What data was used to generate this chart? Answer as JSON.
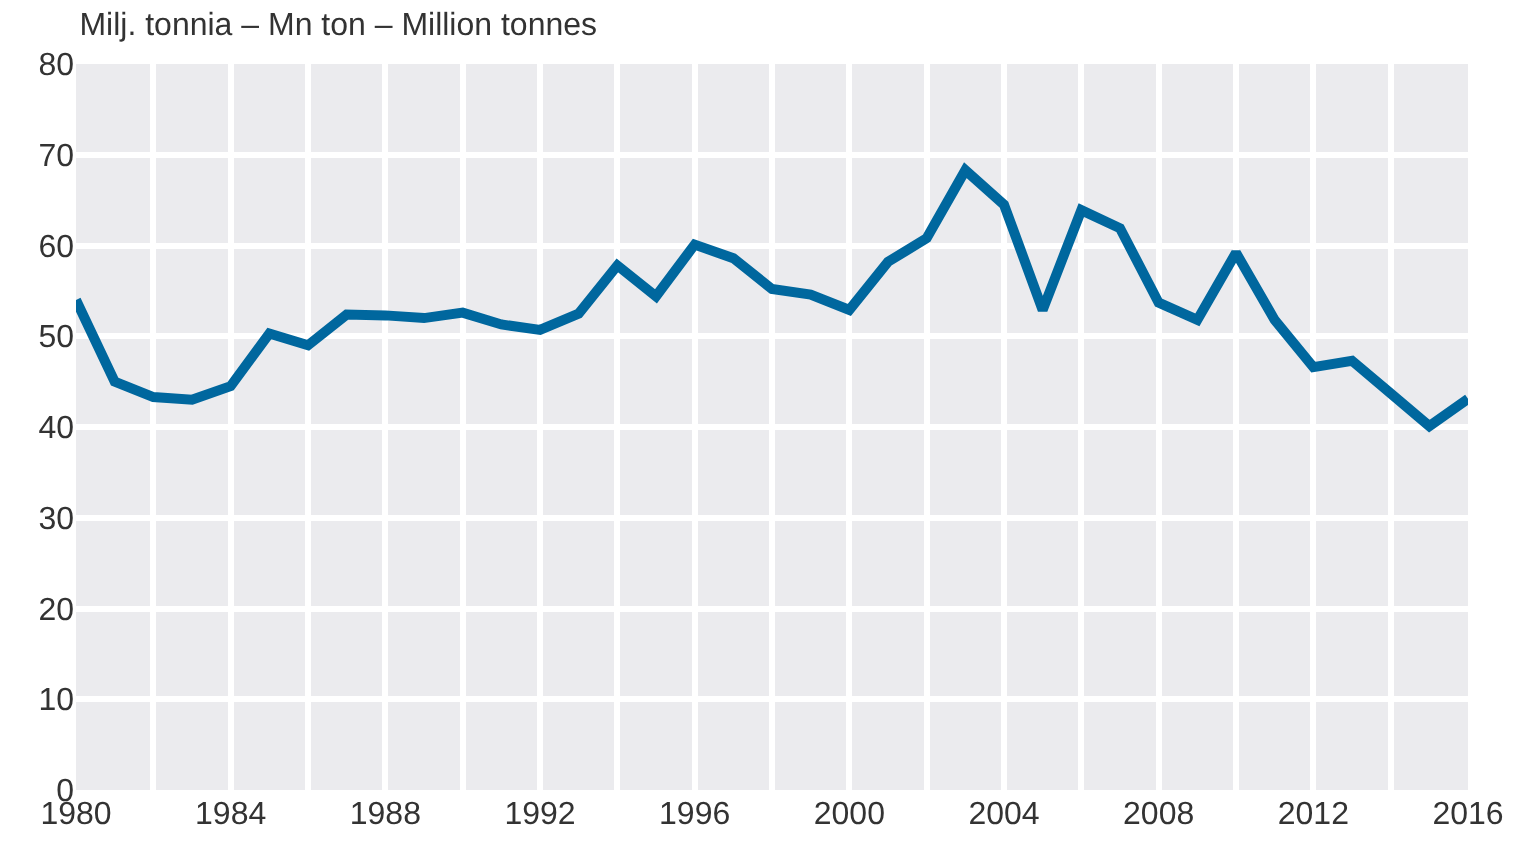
{
  "chart_data": {
    "type": "line",
    "title": "Milj. tonnia – Mn ton – Million tonnes",
    "x": [
      1980,
      1981,
      1982,
      1983,
      1984,
      1985,
      1986,
      1987,
      1988,
      1989,
      1990,
      1991,
      1992,
      1993,
      1994,
      1995,
      1996,
      1997,
      1998,
      1999,
      2000,
      2001,
      2002,
      2003,
      2004,
      2005,
      2006,
      2007,
      2008,
      2009,
      2010,
      2011,
      2012,
      2013,
      2014,
      2015,
      2016
    ],
    "series": [
      {
        "color": "#00679e",
        "values": [
          54,
          45,
          43.3,
          43,
          44.5,
          50.3,
          49,
          52.4,
          52.3,
          52,
          52.6,
          51.3,
          50.7,
          52.5,
          57.8,
          54.4,
          60.1,
          58.6,
          55.2,
          54.6,
          52.9,
          58.2,
          60.8,
          68.3,
          64.5,
          52.9,
          63.9,
          61.9,
          53.7,
          51.8,
          59.2,
          51.8,
          46.6,
          47.3,
          43.7,
          40.1,
          43.1
        ]
      }
    ],
    "xlim": [
      1980,
      2016
    ],
    "xticks": [
      1980,
      {
        "value": 1982,
        "label": null
      },
      1984,
      {
        "value": 1986,
        "label": null
      },
      1988,
      {
        "value": 1990,
        "label": null
      },
      1992,
      {
        "value": 1994,
        "label": null
      },
      1996,
      {
        "value": 1998,
        "label": null
      },
      2000,
      {
        "value": 2002,
        "label": null
      },
      2004,
      {
        "value": 2006,
        "label": null
      },
      2008,
      {
        "value": 2010,
        "label": null
      },
      2012,
      {
        "value": 2014,
        "label": null
      },
      2016
    ],
    "ylim": [
      0,
      80
    ],
    "yticks": [
      0,
      10,
      20,
      30,
      40,
      50,
      60,
      70,
      80
    ],
    "grid": true
  }
}
